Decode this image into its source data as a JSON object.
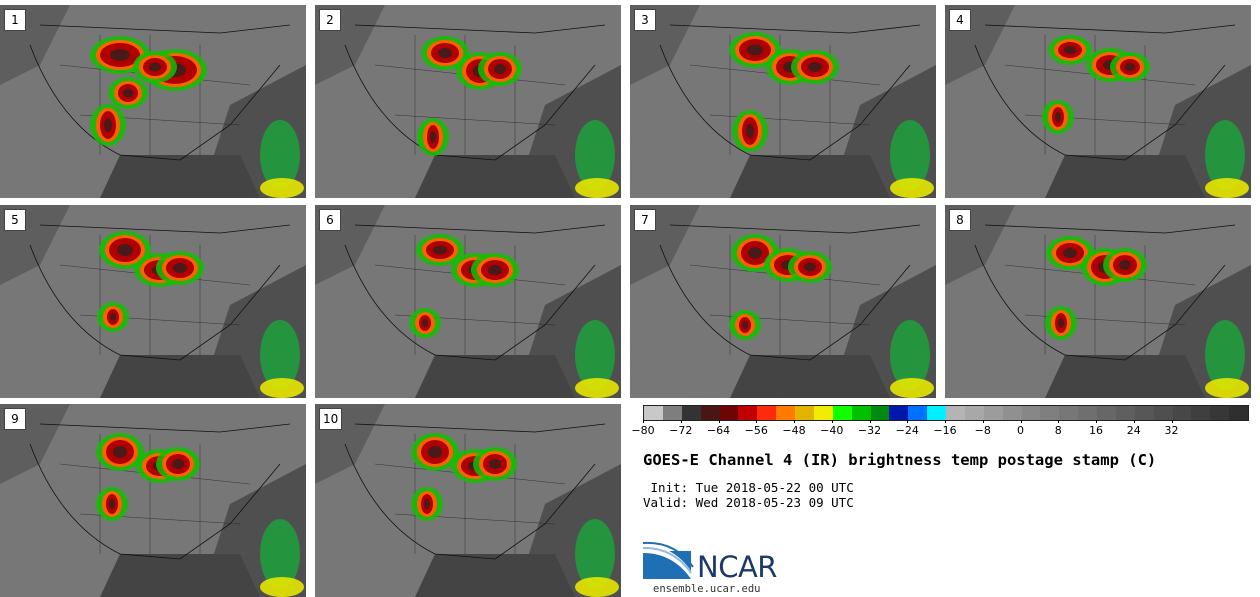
{
  "members": [
    "1",
    "2",
    "3",
    "4",
    "5",
    "6",
    "7",
    "8",
    "9",
    "10"
  ],
  "colorbar": {
    "colors": [
      "#c8c8c8",
      "#7e7e7e",
      "#333333",
      "#4a1515",
      "#6e0505",
      "#c00000",
      "#ff2a0a",
      "#ff7a00",
      "#e0b400",
      "#f2ec00",
      "#12ff00",
      "#00c000",
      "#008a12",
      "#0018aa",
      "#0070ff",
      "#00f0ff",
      "#b4b4b4",
      "#a8a8a8",
      "#9c9c9c",
      "#909090",
      "#878787",
      "#7f7f7f",
      "#777777",
      "#6f6f6f",
      "#676767",
      "#5f5f5f",
      "#575757",
      "#4f4f4f",
      "#474747",
      "#3f3f3f",
      "#373737",
      "#2f2f2f"
    ],
    "min": -80,
    "max": 48,
    "ticks": [
      "-80",
      "-72",
      "-64",
      "-56",
      "-48",
      "-40",
      "-32",
      "-24",
      "-16",
      "-8",
      "0",
      "8",
      "16",
      "24",
      "32"
    ]
  },
  "title": "GOES-E Channel 4 (IR) brightness temp postage stamp (C)",
  "init_line": " Init: Tue 2018-05-22 00 UTC",
  "valid_line": "Valid: Wed 2018-05-23 09 UTC",
  "logo": {
    "text": "NCAR",
    "url": "ensemble.ucar.edu"
  }
}
